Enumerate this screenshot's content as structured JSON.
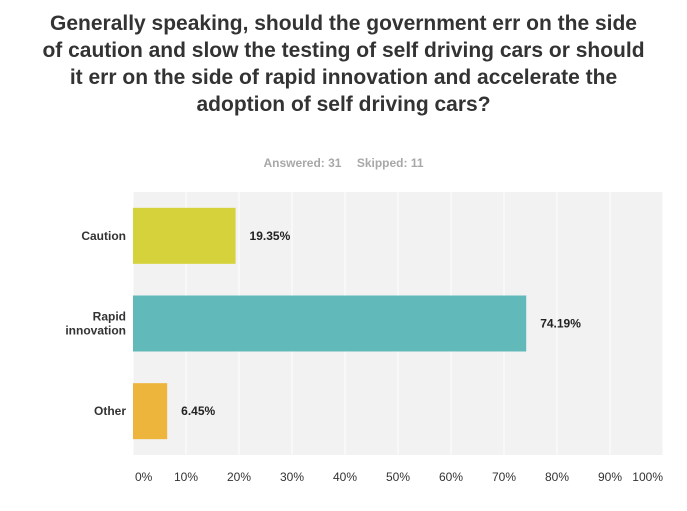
{
  "survey": {
    "question": "Generally speaking, should the government err on the side of caution and slow the testing of self driving cars or should it err on the side of rapid innovation and accelerate the adoption of self driving cars?",
    "answered_label": "Answered: 31",
    "skipped_label": "Skipped: 11"
  },
  "chart_data": {
    "type": "bar",
    "orientation": "horizontal",
    "categories": [
      "Caution",
      "Rapid innovation",
      "Other"
    ],
    "category_lines": [
      [
        "Caution"
      ],
      [
        "Rapid",
        "innovation"
      ],
      [
        "Other"
      ]
    ],
    "values": [
      19.35,
      74.19,
      6.45
    ],
    "value_labels": [
      "19.35%",
      "74.19%",
      "6.45%"
    ],
    "colors": [
      "#d6d23b",
      "#61b9b9",
      "#eeb53c"
    ],
    "xlim": [
      0,
      100
    ],
    "x_ticks": [
      "0%",
      "10%",
      "20%",
      "30%",
      "40%",
      "50%",
      "60%",
      "70%",
      "80%",
      "90%",
      "100%"
    ],
    "grid": true,
    "plot_background": "#f2f2f2"
  }
}
